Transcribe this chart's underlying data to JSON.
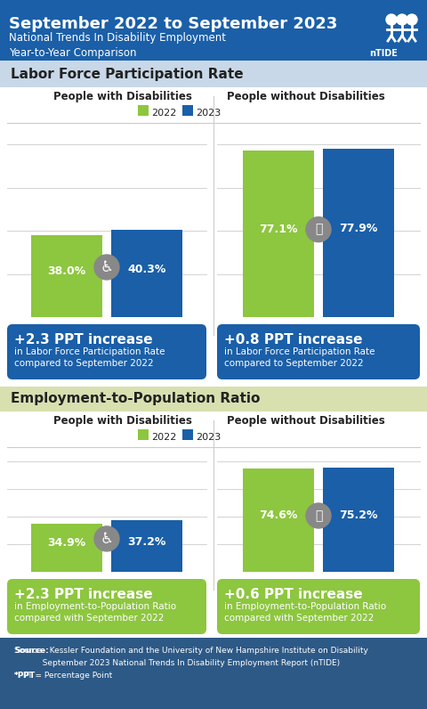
{
  "title_line1": "September 2022 to September 2023",
  "title_line2": "National Trends In Disability Employment\nYear-to-Year Comparison",
  "header_bg": "#1a5fa8",
  "section1_label": "Labor Force Participation Rate",
  "section1_bg": "#c8d8e8",
  "section2_label": "Employment-to-Population Ratio",
  "section2_bg": "#d8e0b0",
  "color_2022": "#8dc63f",
  "color_2023": "#1a5fa8",
  "color_box_dis": "#1a5fa8",
  "color_box_nodis": "#1a5fa8",
  "color_box_emp_dis": "#8dc63f",
  "color_box_emp_nodis": "#8dc63f",
  "footer_bg": "#2d5986",
  "footer_text": "Source:  Kessler Foundation and the University of New Hampshire Institute on Disability\n           September 2023 National Trends In Disability Employment Report (nTIDE)\n*PPT = Percentage Point",
  "left_col_label": "People with Disabilities",
  "right_col_label": "People without Disabilities",
  "lfpr_dis_2022": 38.0,
  "lfpr_dis_2023": 40.3,
  "lfpr_nodis_2022": 77.1,
  "lfpr_nodis_2023": 77.9,
  "epr_dis_2022": 34.9,
  "epr_dis_2023": 37.2,
  "epr_nodis_2022": 74.6,
  "epr_nodis_2023": 75.2,
  "lfpr_dis_ppt": "+2.3 PPT increase",
  "lfpr_dis_sub": "in Labor Force Participation Rate\ncompared to September 2022",
  "lfpr_nodis_ppt": "+0.8 PPT increase",
  "lfpr_nodis_sub": "in Labor Force Participation Rate\ncompared to September 2022",
  "epr_dis_ppt": "+2.3 PPT increase",
  "epr_dis_sub": "in Employment-to-Population Ratio\ncompared with September 2022",
  "epr_nodis_ppt": "+0.6 PPT increase",
  "epr_nodis_sub": "in Employment-to-Population Ratio\ncompared with September 2022",
  "icon_color": "#888888",
  "white": "#ffffff",
  "dark_text": "#222222"
}
